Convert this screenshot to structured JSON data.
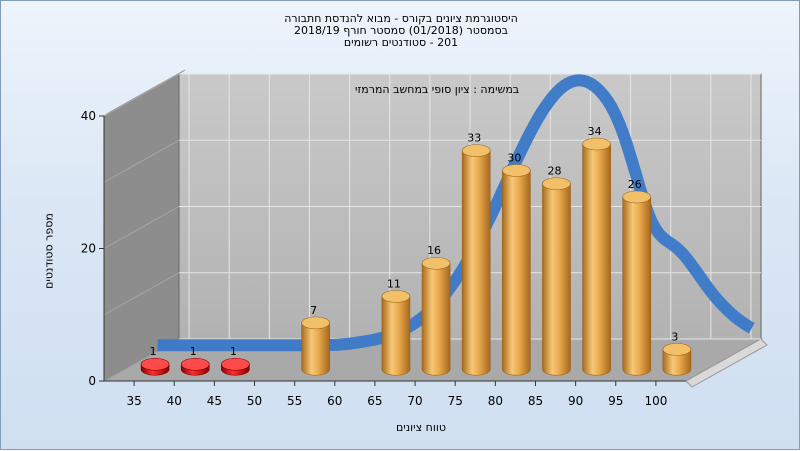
{
  "title_lines": [
    "היסטוגרמת ציונים בקורס - מבוא להנדסת חתבורה",
    "בסמסטר  (01/2018)  סמסטר חורף  2018/19",
    "201 - סטודנטים רשומים"
  ],
  "subtitle": "במשימה : ציון סופי במחשב המרמזי",
  "chart_data": {
    "type": "bar",
    "categories": [
      "35",
      "40",
      "45",
      "50",
      "55",
      "60",
      "65",
      "70",
      "75",
      "80",
      "85",
      "90",
      "95",
      "100"
    ],
    "values": [
      1,
      1,
      1,
      0,
      7,
      0,
      11,
      16,
      33,
      30,
      28,
      34,
      26,
      3
    ],
    "highlight_colors": [
      "red",
      "red",
      "red",
      "gold",
      "gold",
      "gold",
      "gold",
      "gold",
      "gold",
      "gold",
      "gold",
      "gold",
      "gold",
      "gold"
    ],
    "ylim": [
      0,
      40
    ],
    "yticks": [
      "0",
      "20",
      "40"
    ],
    "ylabel": "מספר סטודנטים",
    "xlabel": "טווח ציונים",
    "grid": true,
    "colors": {
      "gold": "#e8a646",
      "red": "#e02020",
      "curve": "#3a78c8"
    }
  }
}
